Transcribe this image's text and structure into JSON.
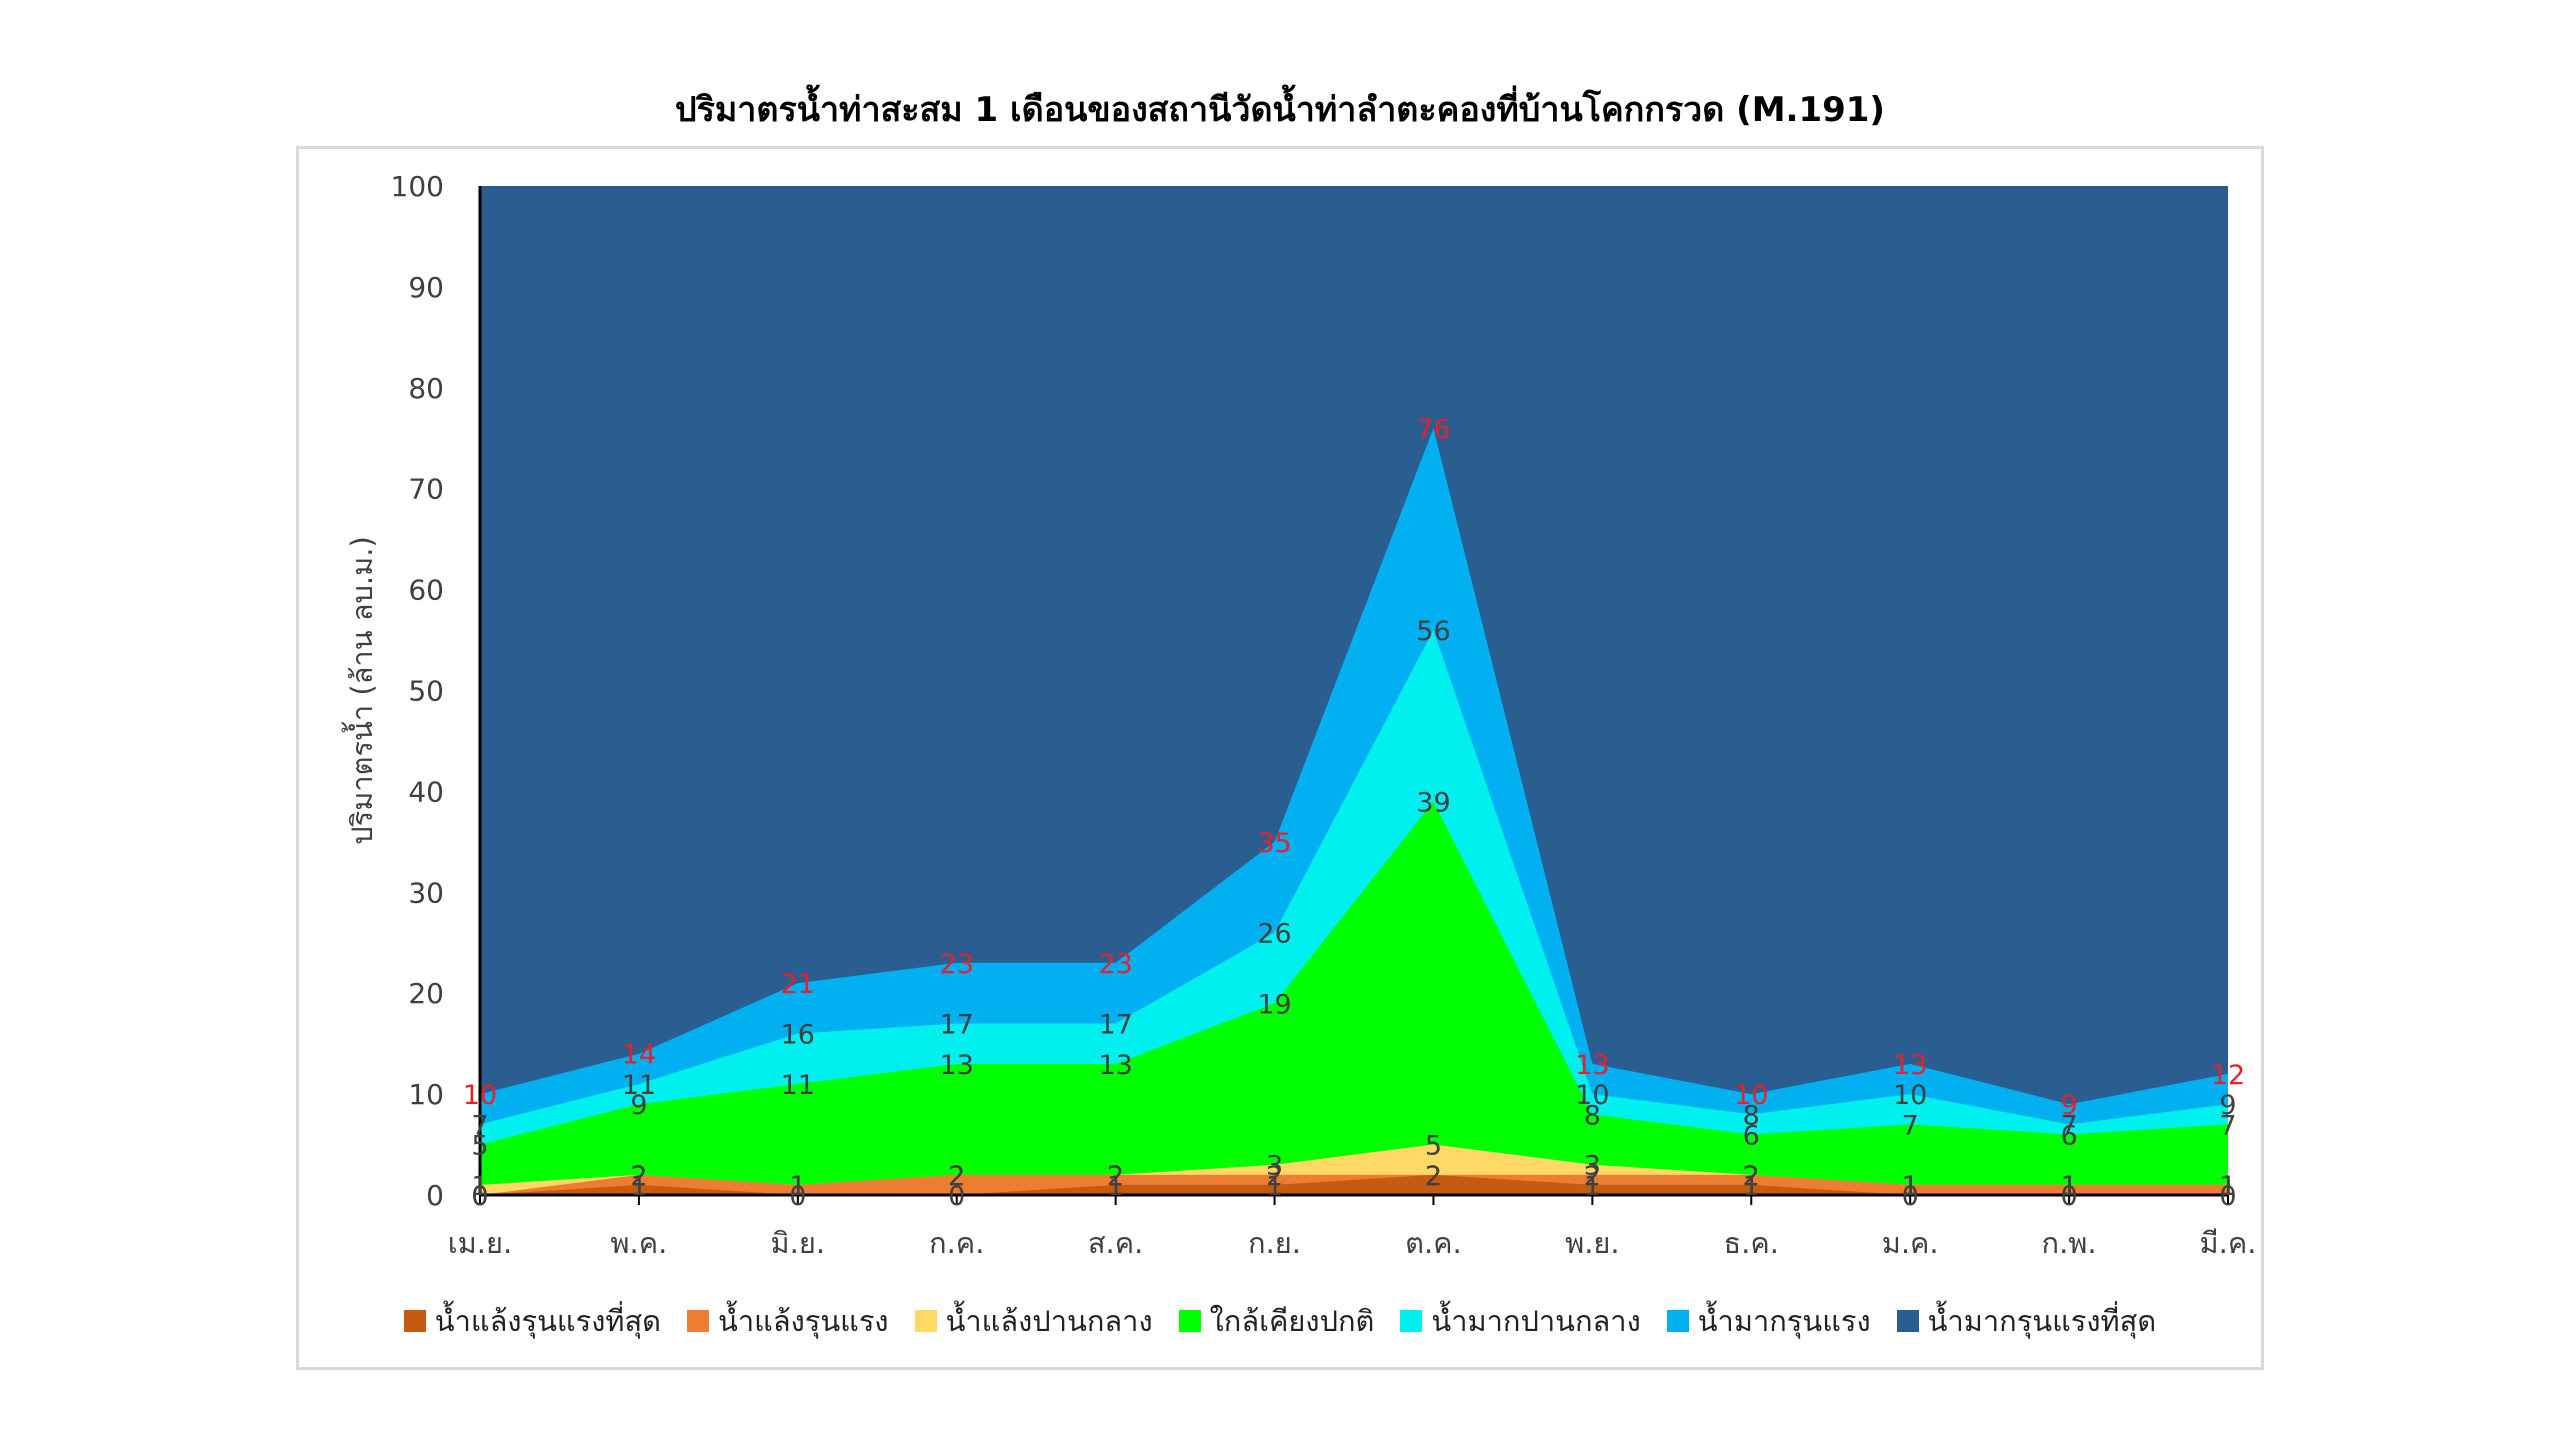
{
  "chart_data": {
    "type": "area",
    "title": "ปริมาตรน้ำท่าสะสม 1 เดือนของสถานีวัดน้ำท่าลำตะคองที่บ้านโคกกรวด (M.191)",
    "xlabel": "",
    "ylabel": "ปริมาตรน้ำ (ล้าน ลบ.ม.)",
    "ylim": [
      0,
      100
    ],
    "yticks": [
      "0",
      "10",
      "20",
      "30",
      "40",
      "50",
      "60",
      "70",
      "80",
      "90",
      "100"
    ],
    "categories": [
      "เม.ย.",
      "พ.ค.",
      "มิ.ย.",
      "ก.ค.",
      "ส.ค.",
      "ก.ย.",
      "ต.ค.",
      "พ.ย.",
      "ธ.ค.",
      "ม.ค.",
      "ก.พ.",
      "มี.ค."
    ],
    "stacked_as": "cumulative thresholds",
    "legend_position": "bottom",
    "grid": false,
    "series": [
      {
        "name": "น้ำแล้งรุนแรงที่สุด",
        "color": "#c55a11",
        "values": [
          0,
          1,
          0,
          0,
          1,
          1,
          2,
          1,
          1,
          0,
          0,
          0
        ]
      },
      {
        "name": "น้ำแล้งรุนแรง",
        "color": "#ed7d31",
        "values": [
          0,
          2,
          1,
          2,
          2,
          2,
          2,
          2,
          2,
          1,
          1,
          1
        ]
      },
      {
        "name": "น้ำแล้งปานกลาง",
        "color": "#ffd966",
        "values": [
          1,
          2,
          1,
          2,
          2,
          3,
          5,
          3,
          2,
          1,
          1,
          1
        ]
      },
      {
        "name": "ใกล้เคียงปกติ",
        "color": "#00ff00",
        "values": [
          5,
          9,
          11,
          13,
          13,
          19,
          39,
          8,
          6,
          7,
          6,
          7
        ]
      },
      {
        "name": "น้ำมากปานกลาง",
        "color": "#00f0f0",
        "values": [
          7,
          11,
          16,
          17,
          17,
          26,
          56,
          10,
          8,
          10,
          7,
          9
        ]
      },
      {
        "name": "น้ำมากรุนแรง",
        "color": "#00b0f0",
        "values": [
          10,
          14,
          21,
          23,
          23,
          35,
          76,
          13,
          10,
          13,
          9,
          12
        ]
      },
      {
        "name": "น้ำมากรุนแรงที่สุด",
        "color": "#2a5e91",
        "values": [
          100,
          100,
          100,
          100,
          100,
          100,
          100,
          100,
          100,
          100,
          100,
          100
        ]
      }
    ],
    "labels": [
      {
        "series": 0,
        "values": [
          "0",
          "1",
          "0",
          "0",
          "1",
          "1",
          "2",
          "1",
          "1",
          "0",
          "0",
          "0"
        ],
        "color": "#404040"
      },
      {
        "series": 1,
        "values": [
          "0",
          "2",
          "1",
          "2",
          "2",
          "2",
          "2",
          "2",
          "2",
          "1",
          "1",
          "1"
        ],
        "color": "#404040"
      },
      {
        "series": 2,
        "values": [
          "1",
          "2",
          "1",
          "2",
          "2",
          "3",
          "5",
          "3",
          "2",
          "1",
          "1",
          "1"
        ],
        "color": "#404040"
      },
      {
        "series": 3,
        "values": [
          "5",
          "9",
          "11",
          "13",
          "13",
          "19",
          "39",
          "8",
          "6",
          "7",
          "6",
          "7"
        ],
        "color": "#404040"
      },
      {
        "series": 4,
        "values": [
          "7",
          "11",
          "16",
          "17",
          "17",
          "26",
          "56",
          "10",
          "8",
          "10",
          "7",
          "9"
        ],
        "color": "#404040"
      },
      {
        "series": 5,
        "values": [
          "10",
          "14",
          "21",
          "23",
          "23",
          "35",
          "76",
          "13",
          "10",
          "13",
          "9",
          "12"
        ],
        "color": "#e8202a"
      }
    ]
  }
}
